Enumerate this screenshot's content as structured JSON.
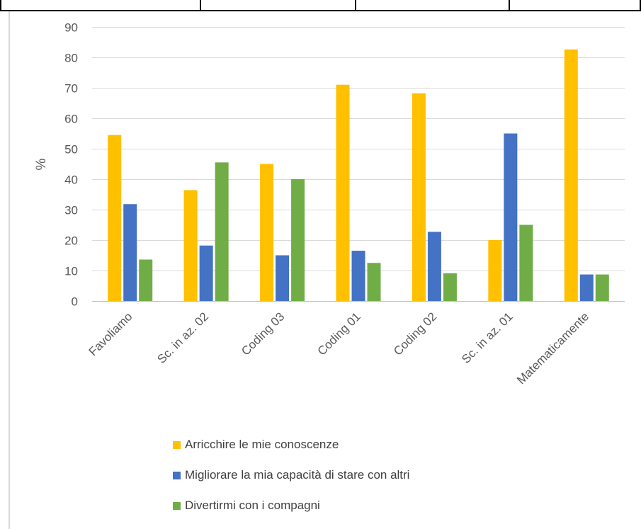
{
  "chart_data": {
    "type": "bar",
    "ylabel": "%",
    "xlabel": "",
    "ylim": [
      0,
      90
    ],
    "yticks": [
      0,
      10,
      20,
      30,
      40,
      50,
      60,
      70,
      80,
      90
    ],
    "grid": true,
    "legend_position": "bottom",
    "categories": [
      "Favoliamo",
      "Sc. in az. 02",
      "Coding 03",
      "Coding 01",
      "Coding 02",
      "Sc. in az. 01",
      "Matematicamente"
    ],
    "series": [
      {
        "name": "Arricchire le mie conoscenze",
        "color": "#FFC000",
        "values": [
          54.5,
          36.4,
          45.0,
          71.0,
          68.2,
          20.0,
          82.6
        ]
      },
      {
        "name": "Migliorare la mia capacità di stare con altri",
        "color": "#4472C4",
        "values": [
          31.8,
          18.2,
          15.0,
          16.5,
          22.7,
          55.0,
          8.7
        ]
      },
      {
        "name": "Divertirmi con i compagni",
        "color": "#70AD47",
        "values": [
          13.6,
          45.5,
          40.0,
          12.5,
          9.1,
          25.0,
          8.7
        ]
      }
    ]
  }
}
